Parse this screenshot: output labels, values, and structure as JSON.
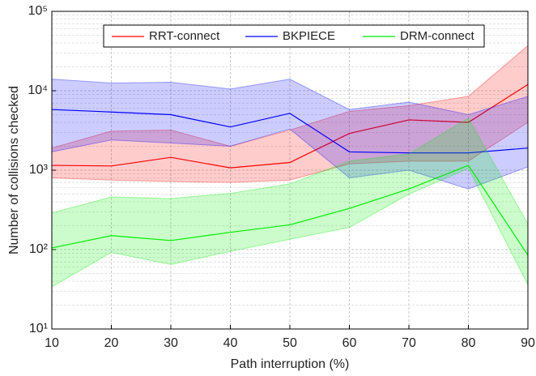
{
  "chart_data": {
    "type": "line",
    "x_label": "Path interruption (%)",
    "y_label": "Number of collisions checked",
    "x": [
      10,
      20,
      30,
      40,
      50,
      60,
      70,
      80,
      90
    ],
    "xlim": [
      10,
      90
    ],
    "xticks": [
      10,
      20,
      30,
      40,
      50,
      60,
      70,
      80,
      90
    ],
    "ylim": [
      10,
      100000
    ],
    "log_y": true,
    "grid": true,
    "legend": "upper center",
    "yticks": [
      {
        "value": 10,
        "label": "10¹"
      },
      {
        "value": 100,
        "label": "10²"
      },
      {
        "value": 1000,
        "label": "10³"
      },
      {
        "value": 10000,
        "label": "10⁴"
      },
      {
        "value": 100000,
        "label": "10⁵"
      }
    ],
    "series": [
      {
        "name": "RRT-connect",
        "color": "#ff0000",
        "values": [
          1150,
          1130,
          1450,
          1070,
          1250,
          2900,
          4300,
          4000,
          12000
        ],
        "upper": [
          1900,
          3100,
          3200,
          2000,
          3200,
          5500,
          6500,
          8500,
          37000
        ],
        "lower": [
          800,
          750,
          720,
          700,
          750,
          1200,
          1300,
          1300,
          4000
        ]
      },
      {
        "name": "BKPIECE",
        "color": "#0000ff",
        "values": [
          5800,
          5400,
          5000,
          3500,
          5200,
          1700,
          1650,
          1650,
          1900
        ],
        "upper": [
          14000,
          12500,
          12800,
          10500,
          14000,
          5800,
          7200,
          5000,
          8500
        ],
        "lower": [
          1700,
          2400,
          2200,
          2000,
          3300,
          800,
          1000,
          580,
          1100
        ]
      },
      {
        "name": "DRM-connect",
        "color": "#00ee00",
        "values": [
          105,
          150,
          130,
          165,
          205,
          330,
          580,
          1150,
          85
        ],
        "upper": [
          290,
          460,
          440,
          510,
          670,
          1300,
          1600,
          4500,
          210
        ],
        "lower": [
          34,
          92,
          65,
          95,
          135,
          190,
          500,
          1050,
          36
        ]
      }
    ]
  }
}
